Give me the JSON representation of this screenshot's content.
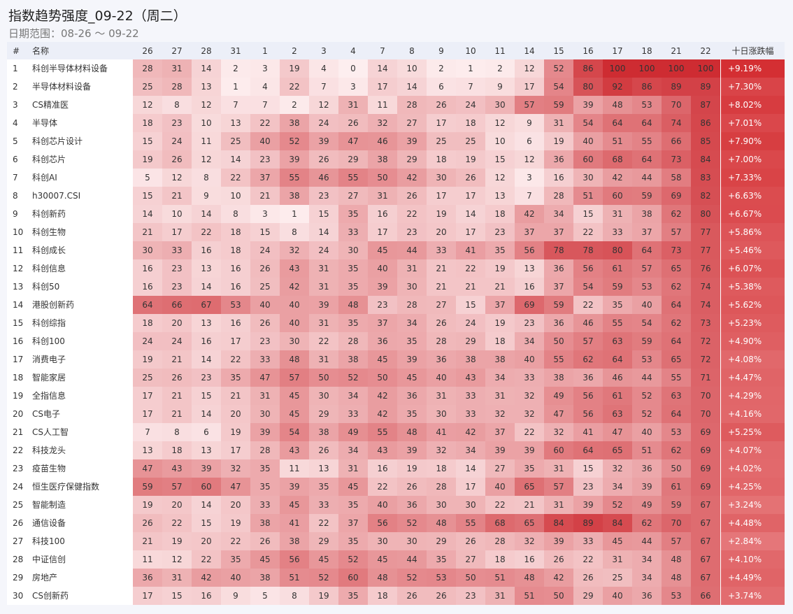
{
  "header": {
    "title": "指数趋势强度_09-22（周二）",
    "subtitle": "日期范围：08-26 ～ 09-22"
  },
  "table": {
    "columns": [
      "#",
      "名称",
      "26",
      "27",
      "28",
      "31",
      "1",
      "2",
      "3",
      "4",
      "7",
      "8",
      "9",
      "10",
      "11",
      "14",
      "15",
      "16",
      "17",
      "18",
      "21",
      "22",
      "十日涨跌幅"
    ],
    "rows": [
      [
        1,
        "科创半导体材料设备",
        28,
        31,
        14,
        2,
        3,
        19,
        4,
        0,
        14,
        10,
        2,
        1,
        2,
        12,
        52,
        86,
        100,
        100,
        100,
        100,
        "+9.19%"
      ],
      [
        2,
        "半导体材料设备",
        25,
        28,
        13,
        1,
        4,
        22,
        7,
        3,
        17,
        14,
        6,
        7,
        9,
        17,
        54,
        80,
        92,
        86,
        89,
        89,
        "+7.30%"
      ],
      [
        3,
        "CS精准医",
        12,
        8,
        12,
        7,
        7,
        2,
        12,
        31,
        11,
        28,
        26,
        24,
        30,
        57,
        59,
        39,
        48,
        53,
        70,
        87,
        "+8.02%"
      ],
      [
        4,
        "半导体",
        18,
        23,
        10,
        13,
        22,
        38,
        24,
        26,
        32,
        27,
        17,
        18,
        12,
        9,
        31,
        54,
        64,
        64,
        74,
        86,
        "+7.01%"
      ],
      [
        5,
        "科创芯片设计",
        15,
        24,
        11,
        25,
        40,
        52,
        39,
        47,
        46,
        39,
        25,
        25,
        10,
        6,
        19,
        40,
        51,
        55,
        66,
        85,
        "+7.90%"
      ],
      [
        6,
        "科创芯片",
        19,
        26,
        12,
        14,
        23,
        39,
        26,
        29,
        38,
        29,
        18,
        19,
        15,
        12,
        36,
        60,
        68,
        64,
        73,
        84,
        "+7.00%"
      ],
      [
        7,
        "科创AI",
        5,
        12,
        8,
        22,
        37,
        55,
        46,
        55,
        50,
        42,
        30,
        26,
        12,
        3,
        16,
        30,
        42,
        44,
        58,
        83,
        "+7.33%"
      ],
      [
        8,
        "h30007.CSI",
        15,
        21,
        9,
        10,
        21,
        38,
        23,
        27,
        31,
        26,
        17,
        17,
        13,
        7,
        28,
        51,
        60,
        59,
        69,
        82,
        "+6.63%"
      ],
      [
        9,
        "科创新药",
        14,
        10,
        14,
        8,
        3,
        1,
        15,
        35,
        16,
        22,
        19,
        14,
        18,
        42,
        34,
        15,
        31,
        38,
        62,
        80,
        "+6.67%"
      ],
      [
        10,
        "科创生物",
        21,
        17,
        22,
        18,
        15,
        8,
        14,
        33,
        17,
        23,
        20,
        17,
        23,
        37,
        37,
        22,
        33,
        37,
        57,
        77,
        "+5.86%"
      ],
      [
        11,
        "科创成长",
        30,
        33,
        16,
        18,
        24,
        32,
        24,
        30,
        45,
        44,
        33,
        41,
        35,
        56,
        78,
        78,
        80,
        64,
        73,
        77,
        "+5.46%"
      ],
      [
        12,
        "科创信息",
        16,
        23,
        13,
        16,
        26,
        43,
        31,
        35,
        40,
        31,
        21,
        22,
        19,
        13,
        36,
        56,
        61,
        57,
        65,
        76,
        "+6.07%"
      ],
      [
        13,
        "科创50",
        16,
        23,
        14,
        16,
        25,
        42,
        31,
        35,
        39,
        30,
        21,
        21,
        21,
        16,
        37,
        54,
        59,
        53,
        62,
        74,
        "+5.38%"
      ],
      [
        14,
        "港股创新药",
        64,
        66,
        67,
        53,
        40,
        40,
        39,
        48,
        23,
        28,
        27,
        15,
        37,
        69,
        59,
        22,
        35,
        40,
        64,
        74,
        "+5.62%"
      ],
      [
        15,
        "科创综指",
        18,
        20,
        13,
        16,
        26,
        40,
        31,
        35,
        37,
        34,
        26,
        24,
        19,
        23,
        36,
        46,
        55,
        54,
        62,
        73,
        "+5.23%"
      ],
      [
        16,
        "科创100",
        24,
        24,
        16,
        17,
        23,
        30,
        22,
        28,
        36,
        35,
        28,
        29,
        18,
        34,
        50,
        57,
        63,
        59,
        64,
        72,
        "+4.90%"
      ],
      [
        17,
        "消费电子",
        19,
        21,
        14,
        22,
        33,
        48,
        31,
        38,
        45,
        39,
        36,
        38,
        38,
        40,
        55,
        62,
        64,
        53,
        65,
        72,
        "+4.08%"
      ],
      [
        18,
        "智能家居",
        25,
        26,
        23,
        35,
        47,
        57,
        50,
        52,
        50,
        45,
        40,
        43,
        34,
        33,
        38,
        36,
        46,
        44,
        55,
        71,
        "+4.47%"
      ],
      [
        19,
        "全指信息",
        17,
        21,
        15,
        21,
        31,
        45,
        30,
        34,
        42,
        36,
        31,
        33,
        31,
        32,
        49,
        56,
        61,
        52,
        63,
        70,
        "+4.29%"
      ],
      [
        20,
        "CS电子",
        17,
        21,
        14,
        20,
        30,
        45,
        29,
        33,
        42,
        35,
        30,
        33,
        32,
        32,
        47,
        56,
        63,
        52,
        64,
        70,
        "+4.16%"
      ],
      [
        21,
        "CS人工智",
        7,
        8,
        6,
        19,
        39,
        54,
        38,
        49,
        55,
        48,
        41,
        42,
        37,
        22,
        32,
        41,
        47,
        40,
        53,
        69,
        "+5.25%"
      ],
      [
        22,
        "科技龙头",
        13,
        18,
        13,
        17,
        28,
        43,
        26,
        34,
        43,
        39,
        32,
        34,
        39,
        39,
        60,
        64,
        65,
        51,
        62,
        69,
        "+4.07%"
      ],
      [
        23,
        "疫苗生物",
        47,
        43,
        39,
        32,
        35,
        11,
        13,
        31,
        16,
        19,
        18,
        14,
        27,
        35,
        31,
        15,
        32,
        36,
        50,
        69,
        "+4.02%"
      ],
      [
        24,
        "恒生医疗保健指数",
        59,
        57,
        60,
        47,
        35,
        39,
        35,
        45,
        22,
        26,
        28,
        17,
        40,
        65,
        57,
        23,
        34,
        39,
        61,
        69,
        "+4.25%"
      ],
      [
        25,
        "智能制造",
        19,
        20,
        14,
        20,
        33,
        45,
        33,
        35,
        40,
        36,
        30,
        30,
        22,
        21,
        31,
        39,
        52,
        49,
        59,
        67,
        "+3.24%"
      ],
      [
        26,
        "通信设备",
        26,
        22,
        15,
        19,
        38,
        41,
        22,
        37,
        56,
        52,
        48,
        55,
        68,
        65,
        84,
        89,
        84,
        62,
        70,
        67,
        "+4.48%"
      ],
      [
        27,
        "科技100",
        21,
        19,
        20,
        22,
        26,
        38,
        29,
        35,
        30,
        30,
        29,
        26,
        28,
        32,
        39,
        33,
        45,
        44,
        57,
        67,
        "+2.84%"
      ],
      [
        28,
        "中证信创",
        11,
        12,
        22,
        35,
        45,
        56,
        45,
        52,
        45,
        44,
        35,
        27,
        18,
        16,
        26,
        22,
        31,
        34,
        48,
        67,
        "+4.10%"
      ],
      [
        29,
        "房地产",
        36,
        31,
        42,
        40,
        38,
        51,
        52,
        60,
        48,
        52,
        53,
        50,
        51,
        48,
        42,
        26,
        25,
        34,
        48,
        67,
        "+4.49%"
      ],
      [
        30,
        "CS创新药",
        17,
        15,
        16,
        9,
        5,
        8,
        19,
        35,
        18,
        26,
        26,
        23,
        31,
        51,
        50,
        29,
        40,
        36,
        53,
        66,
        "+3.74%"
      ]
    ]
  }
}
